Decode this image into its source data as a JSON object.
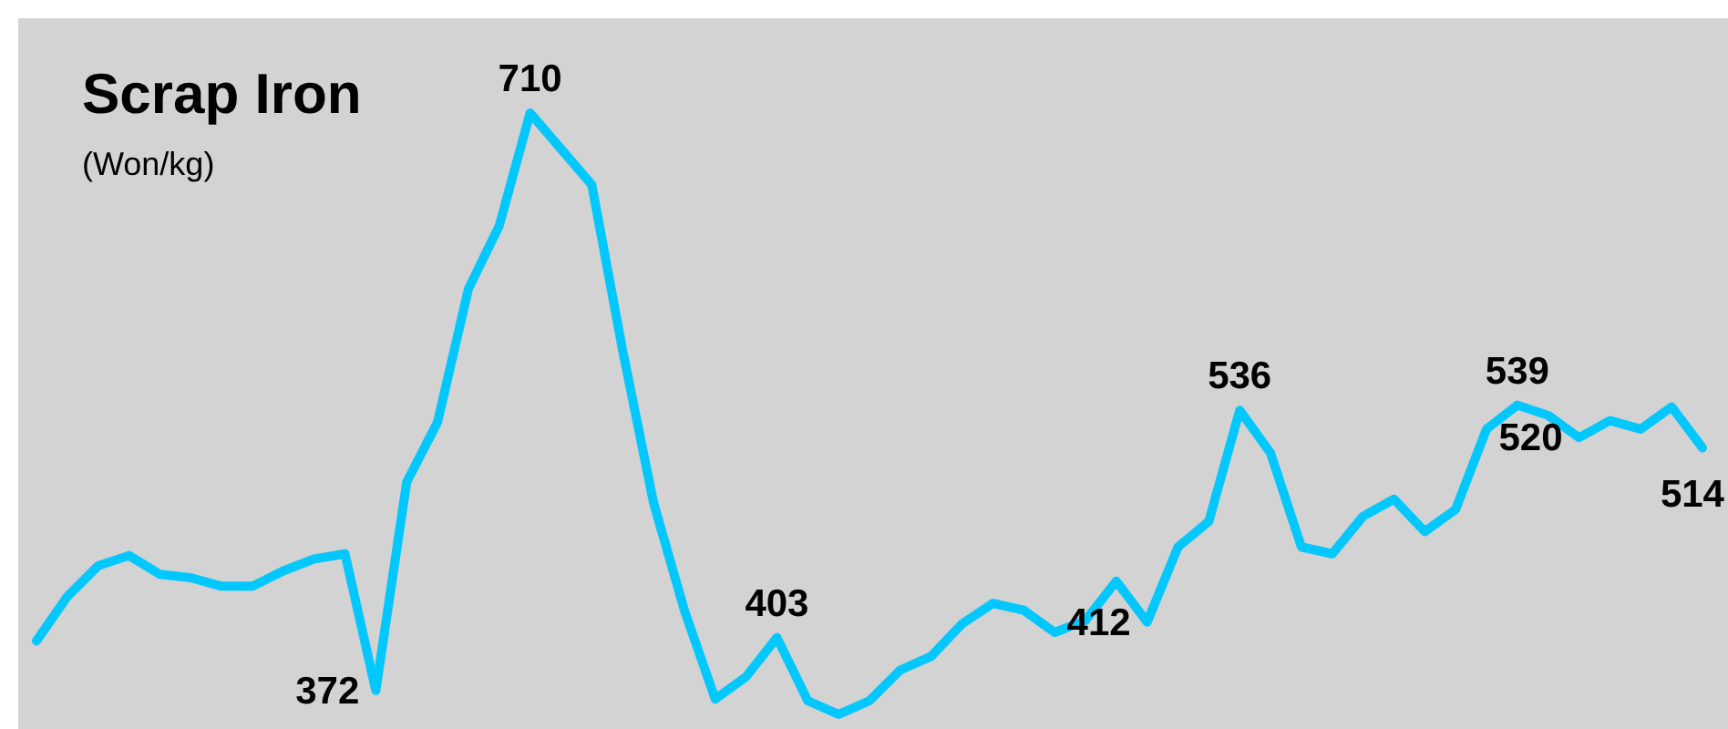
{
  "chart_data": {
    "type": "line",
    "title": "Scrap Iron",
    "subtitle": "(Won/kg)",
    "categories": [
      null,
      null,
      null,
      null,
      null,
      null,
      null,
      null,
      null,
      null,
      null,
      null,
      null,
      null,
      null,
      null,
      null,
      null,
      null,
      null,
      null,
      null,
      null,
      null,
      null,
      null,
      null,
      null,
      null,
      null,
      null,
      null,
      null,
      null,
      null,
      null,
      null,
      null,
      null,
      null,
      null,
      null,
      null,
      null,
      null,
      null,
      null,
      null,
      null,
      null,
      null,
      null,
      null,
      null,
      null
    ],
    "series": [
      {
        "color": "#00c8ff",
        "values": [
          401,
          427,
          445,
          451,
          440,
          438,
          433,
          433,
          442,
          449,
          452,
          372,
          494,
          529,
          607,
          644,
          710,
          689,
          668,
          571,
          482,
          419,
          367,
          380,
          403,
          366,
          358,
          366,
          384,
          392,
          411,
          423,
          419,
          406,
          413,
          436,
          412,
          456,
          471,
          536,
          511,
          456,
          452,
          474,
          484,
          465,
          478,
          525,
          539,
          533,
          520,
          530,
          525,
          538,
          514
        ],
        "value_labels": [
          null,
          null,
          null,
          null,
          null,
          null,
          null,
          null,
          null,
          null,
          null,
          "372",
          null,
          null,
          null,
          null,
          "710",
          null,
          null,
          null,
          null,
          null,
          null,
          null,
          "403",
          null,
          null,
          null,
          null,
          null,
          null,
          null,
          null,
          null,
          null,
          null,
          "412",
          null,
          null,
          "536",
          null,
          null,
          null,
          null,
          null,
          null,
          null,
          null,
          "539",
          null,
          "520",
          null,
          null,
          null,
          "514"
        ]
      }
    ],
    "marker": "none",
    "line_style": "solid"
  }
}
